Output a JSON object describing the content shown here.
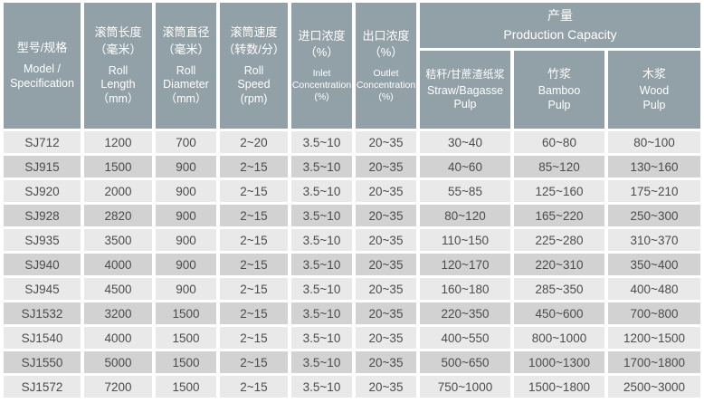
{
  "colors": {
    "header_bg": "#92a0a7",
    "header_text": "#ffffff",
    "row_light": "#e9e9e9",
    "row_dark": "#d2d2d2",
    "cell_text": "#4c4c4c",
    "gutter": "#ffffff"
  },
  "header": {
    "columns": [
      {
        "zh": "型号/规格",
        "en": "Model /\nSpecification"
      },
      {
        "zh": "滚筒长度\n（毫米）",
        "en": "Roll\nLength\n（mm）"
      },
      {
        "zh": "滚筒直径\n（毫米）",
        "en": "Roll\nDiameter\n（mm）"
      },
      {
        "zh": "滚筒速度\n（转数/分）",
        "en": "Roll\nSpeed\n(rpm)"
      },
      {
        "zh": "进口浓度\n（%）",
        "en": "Inlet\nConcentration\n(%)"
      },
      {
        "zh": "出口浓度\n（%）",
        "en": "Outlet\nConcentration\n(%)"
      }
    ],
    "production": {
      "zh": "产量",
      "en": "Production Capacity",
      "subcolumns": [
        {
          "zh": "秸秆/甘蔗渣纸浆",
          "en": "Straw/Bagasse\nPulp"
        },
        {
          "zh": "竹浆",
          "en": "Bamboo\nPulp"
        },
        {
          "zh": "木浆",
          "en": "Wood\nPulp"
        }
      ]
    }
  },
  "rows": [
    [
      "SJ712",
      "1200",
      "700",
      "2~20",
      "3.5~10",
      "20~35",
      "30~40",
      "60~80",
      "80~100"
    ],
    [
      "SJ915",
      "1500",
      "900",
      "2~15",
      "3.5~10",
      "20~35",
      "40~60",
      "85~120",
      "130~160"
    ],
    [
      "SJ920",
      "2000",
      "900",
      "2~15",
      "3.5~10",
      "20~35",
      "55~85",
      "125~160",
      "175~210"
    ],
    [
      "SJ928",
      "2820",
      "900",
      "2~15",
      "3.5~10",
      "20~35",
      "80~120",
      "165~220",
      "250~300"
    ],
    [
      "SJ935",
      "3500",
      "900",
      "2~15",
      "3.5~10",
      "20~35",
      "110~150",
      "225~280",
      "310~370"
    ],
    [
      "SJ940",
      "4000",
      "900",
      "2~15",
      "3.5~10",
      "20~35",
      "120~170",
      "220~310",
      "350~400"
    ],
    [
      "SJ945",
      "4500",
      "900",
      "2~15",
      "3.5~10",
      "20~35",
      "160~180",
      "285~350",
      "400~480"
    ],
    [
      "SJ1532",
      "3200",
      "1500",
      "2~15",
      "3.5~10",
      "20~35",
      "220~350",
      "450~600",
      "700~800"
    ],
    [
      "SJ1540",
      "4000",
      "1500",
      "2~15",
      "3.5~10",
      "20~35",
      "400~550",
      "800~1000",
      "1200~1500"
    ],
    [
      "SJ1550",
      "5000",
      "1500",
      "2~15",
      "3.5~10",
      "20~35",
      "500~650",
      "1000~1300",
      "1700~1800"
    ],
    [
      "SJ1572",
      "7200",
      "1500",
      "2~15",
      "3.5~10",
      "20~35",
      "750~1000",
      "1500~1800",
      "2500~3000"
    ]
  ]
}
